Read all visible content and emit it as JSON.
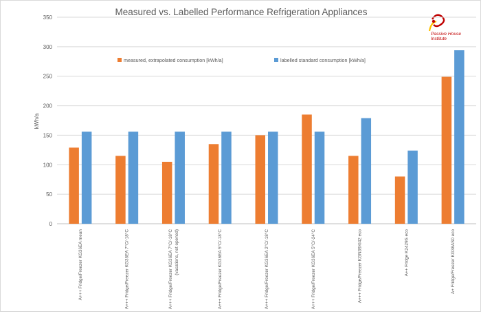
{
  "chart_data": {
    "type": "bar",
    "title": "Measured vs. Labelled Performance Refrigeration Appliances",
    "ylabel": "kWh/a",
    "xlabel": "",
    "ylim": [
      0,
      350
    ],
    "yticks": [
      0,
      50,
      100,
      150,
      200,
      250,
      300,
      350
    ],
    "grid": true,
    "legend_position": "top-left",
    "categories": [
      [
        "A+++ Fridge/Freezer KG36EA mean"
      ],
      [
        "A+++ Fridge/Freezer KG36EA 7°C/-18°C"
      ],
      [
        "A+++ Fridge/Freezer KG36EA 7°C/-18°C",
        "(vacations, not opened)"
      ],
      [
        "A+++ Fridge/Freezer KG36EA 5°C/-18°C"
      ],
      [
        "A+++ Fridge/Freezer KG36EA 2°C/-18°C"
      ],
      [
        "A+++ Fridge/Freezer KG36EA 5°C/-24°C"
      ],
      [
        "A+++ Fridge/Freezer KGN39XI42 eco"
      ],
      [
        "A++ Fridge K2429S eco"
      ],
      [
        "A+ Fridge/Freezer KG38AS0 eco"
      ]
    ],
    "series": [
      {
        "name": "measured, extrapolated consumption [kWh/a]",
        "color": "#ed7d31",
        "values": [
          129,
          115,
          105,
          135,
          150,
          185,
          115,
          80,
          249
        ]
      },
      {
        "name": "labelled standard consumption [kWh/a]",
        "color": "#5b9bd5",
        "values": [
          156,
          156,
          156,
          156,
          156,
          156,
          179,
          124,
          294
        ]
      }
    ]
  },
  "logo": {
    "line1": "Passive House",
    "line2": "Institute",
    "color": "#c00000",
    "mark_color": "#ffc000"
  }
}
